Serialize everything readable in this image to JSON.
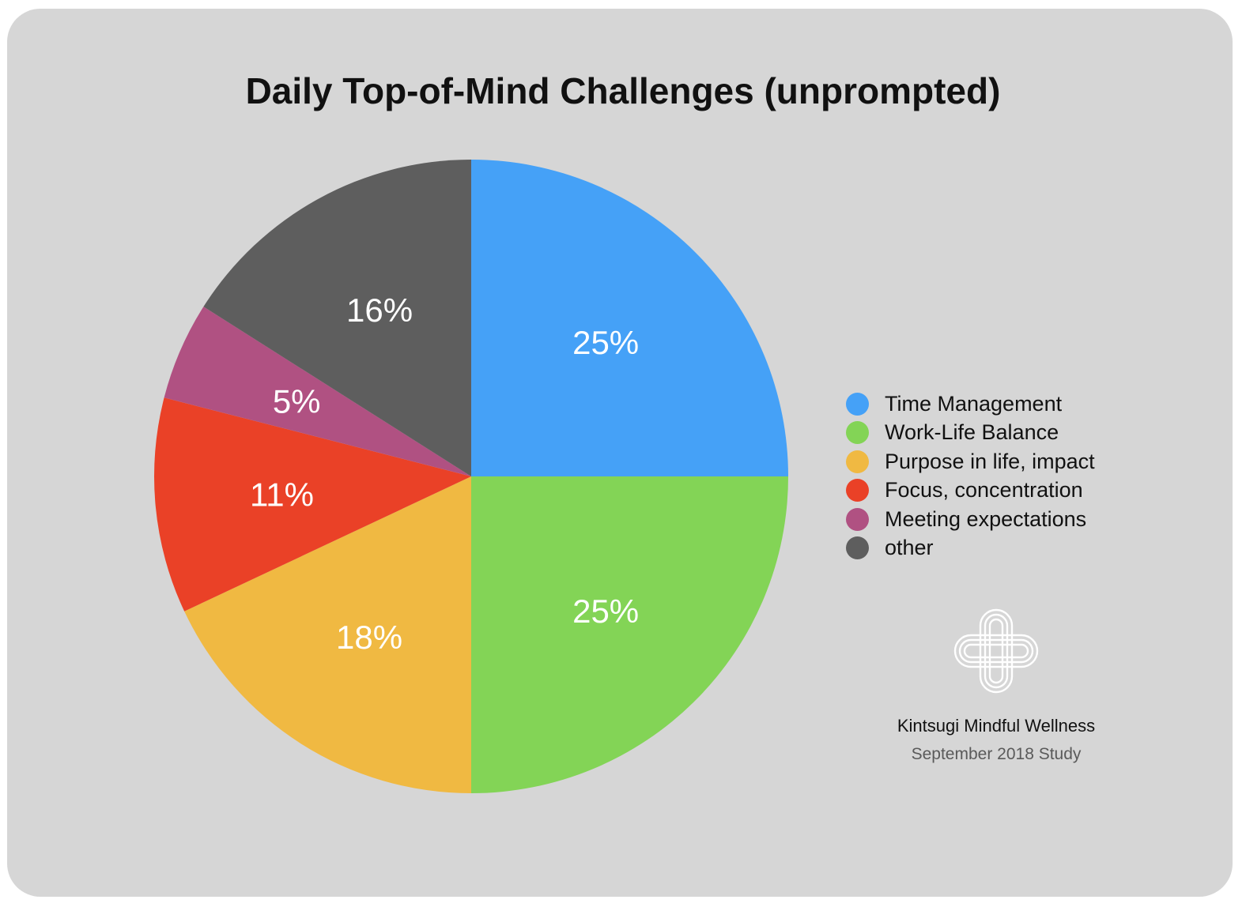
{
  "chart_data": {
    "type": "pie",
    "title": "Daily Top-of-Mind Challenges (unprompted)",
    "categories": [
      "Time Management",
      "Work-Life Balance",
      "Purpose in life, impact",
      "Focus, concentration",
      "Meeting expectations",
      "other"
    ],
    "values": [
      25,
      25,
      18,
      11,
      5,
      16
    ],
    "labels": [
      "25%",
      "25%",
      "18%",
      "11%",
      "5%",
      "16%"
    ],
    "colors": [
      "#45a1f7",
      "#83d456",
      "#f0b942",
      "#ea4127",
      "#b05182",
      "#5e5e5e"
    ],
    "start": "12 o'clock, clockwise",
    "legend_position": "right"
  },
  "footer": {
    "brand": "Kintsugi Mindful Wellness",
    "study": "September 2018 Study"
  },
  "logo": {
    "icon": "kintsugi-knot-icon",
    "color": "#ffffff"
  }
}
